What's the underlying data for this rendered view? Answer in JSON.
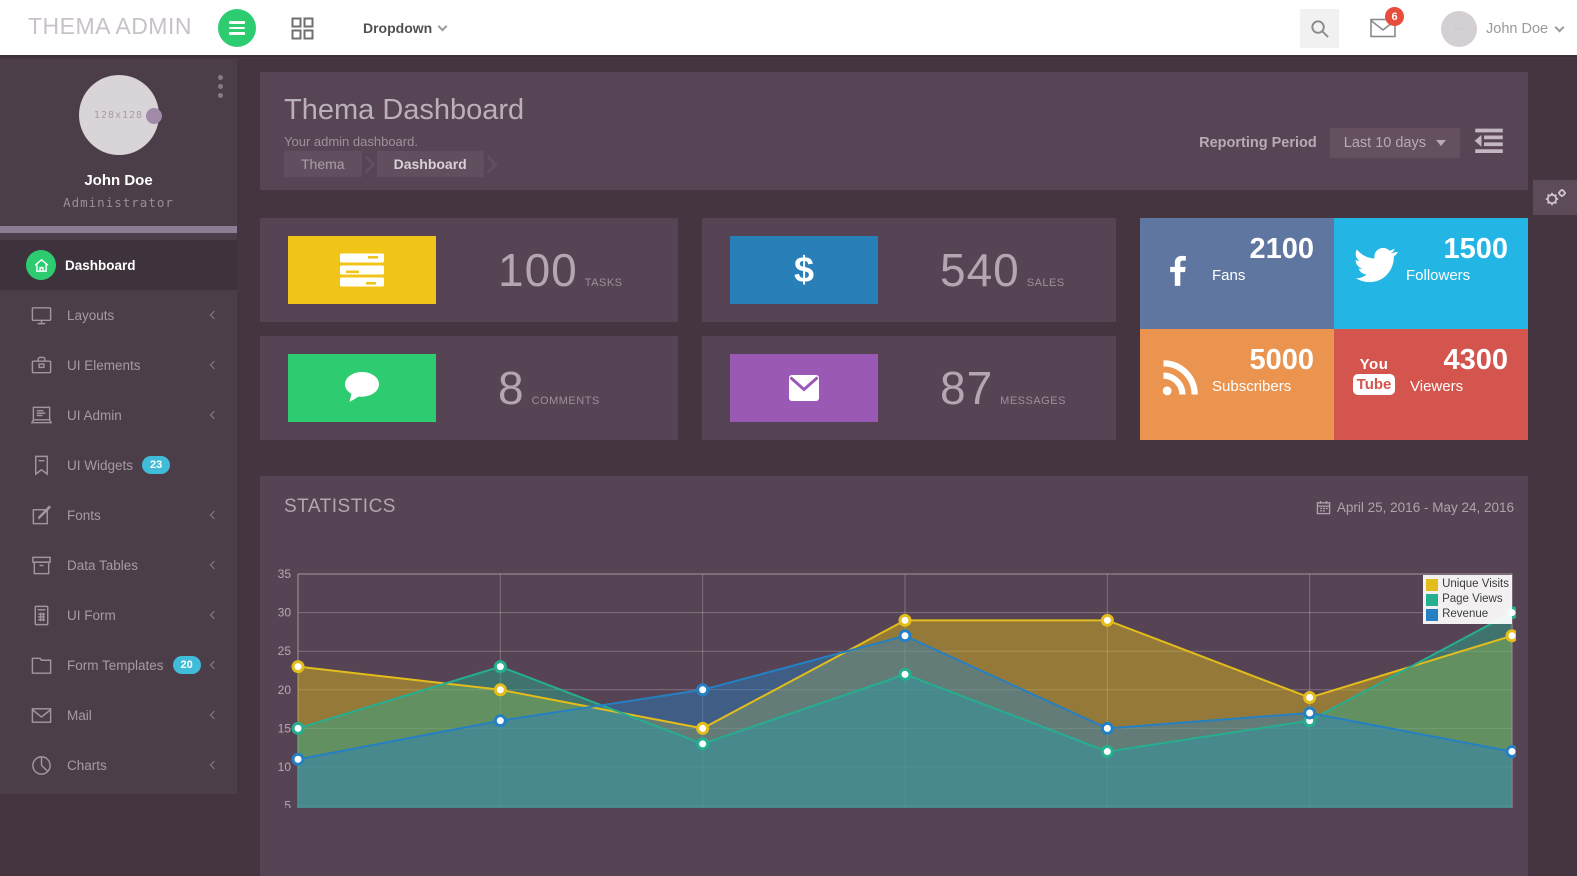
{
  "header": {
    "brand": "THEMA ADMIN",
    "dropdown_label": "Dropdown",
    "mail_badge": "6",
    "user_name": "John Doe"
  },
  "sidebar": {
    "profile": {
      "avatar_placeholder": "128x128",
      "name": "John Doe",
      "role": "Administrator"
    },
    "items": [
      {
        "label": "Dashboard",
        "icon": "home-icon",
        "active": true
      },
      {
        "label": "Layouts",
        "icon": "monitor-icon"
      },
      {
        "label": "UI Elements",
        "icon": "briefcase-icon"
      },
      {
        "label": "UI Admin",
        "icon": "newspaper-icon"
      },
      {
        "label": "UI Widgets",
        "icon": "bookmark-icon",
        "badge": "23"
      },
      {
        "label": "Fonts",
        "icon": "edit-icon"
      },
      {
        "label": "Data Tables",
        "icon": "archive-icon"
      },
      {
        "label": "UI Form",
        "icon": "calculator-icon"
      },
      {
        "label": "Form Templates",
        "icon": "folder-icon",
        "badge": "20"
      },
      {
        "label": "Mail",
        "icon": "mail-icon"
      },
      {
        "label": "Charts",
        "icon": "pie-chart-icon"
      }
    ]
  },
  "page": {
    "title": "Thema Dashboard",
    "subtitle": "Your admin dashboard.",
    "breadcrumb": [
      "Thema",
      "Dashboard"
    ],
    "reporting": {
      "label": "Reporting Period",
      "value": "Last 10 days"
    }
  },
  "stats": [
    {
      "value": "100",
      "label": "TASKS",
      "color": "#f0c419",
      "icon": "tasks-icon"
    },
    {
      "value": "540",
      "label": "SALES",
      "color": "#2980b9",
      "icon": "dollar-icon",
      "glyph": "$"
    },
    {
      "value": "8",
      "label": "COMMENTS",
      "color": "#2ecc71",
      "icon": "comment-icon"
    },
    {
      "value": "87",
      "label": "MESSAGES",
      "color": "#9b59b6",
      "icon": "envelope-icon"
    }
  ],
  "social": [
    {
      "network": "facebook",
      "value": "2100",
      "label": "Fans",
      "color": "#5e76a0"
    },
    {
      "network": "twitter",
      "value": "1500",
      "label": "Followers",
      "color": "#23b6e4"
    },
    {
      "network": "rss",
      "value": "5000",
      "label": "Subscribers",
      "color": "#eb9450"
    },
    {
      "network": "youtube",
      "value": "4300",
      "label": "Viewers",
      "color": "#d4544e",
      "logo_top": "You",
      "logo_bottom": "Tube"
    }
  ],
  "statistics_panel": {
    "title": "STATISTICS",
    "date_range": "April 25, 2016 - May 24, 2016"
  },
  "chart_data": {
    "type": "area",
    "x": [
      0,
      1,
      2,
      3,
      4,
      5,
      6
    ],
    "series": [
      {
        "name": "Unique Visits",
        "color": "#e2bd1b",
        "values": [
          23,
          20,
          15,
          29,
          29,
          19,
          27
        ]
      },
      {
        "name": "Page Views",
        "color": "#26ae90",
        "values": [
          15,
          23,
          13,
          22,
          12,
          16,
          30
        ]
      },
      {
        "name": "Revenue",
        "color": "#2580c3",
        "values": [
          11,
          16,
          20,
          27,
          15,
          17,
          12
        ]
      }
    ],
    "ylim": [
      5,
      35
    ],
    "yticks": [
      35,
      30,
      25,
      20,
      15,
      10,
      5
    ],
    "grid": true,
    "legend_position": "top-right",
    "fill_opacity": 0.45
  }
}
